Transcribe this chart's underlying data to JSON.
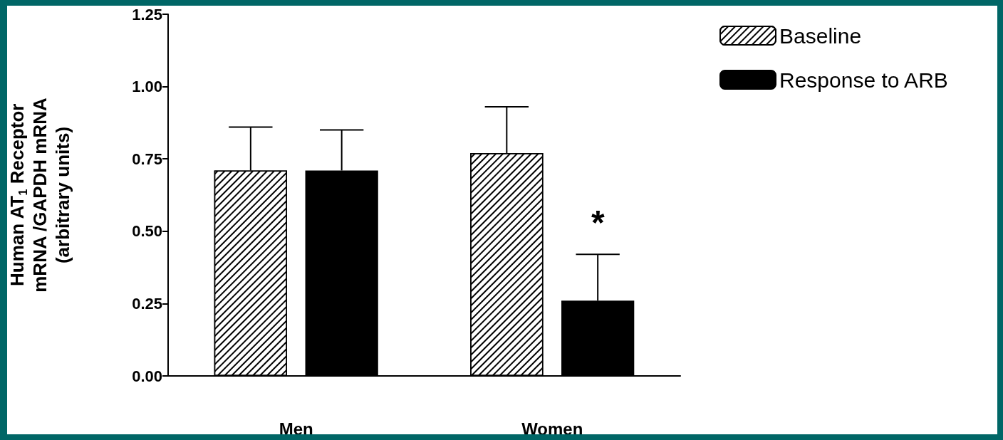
{
  "chart_data": {
    "type": "bar",
    "ylabel": "Human AT$_{1}$ Receptor\nmRNA /GAPDH mRNA\n(arbitrary units)",
    "categories": [
      "Men",
      "Women"
    ],
    "series": [
      {
        "name": "Baseline",
        "color": "#ffffff",
        "values": [
          0.71,
          0.77
        ],
        "errors": [
          [
            0.71,
            0.86
          ],
          [
            0.77,
            0.93
          ]
        ]
      },
      {
        "name": "Response to ARB",
        "color": "#000000",
        "values": [
          0.71,
          0.26
        ],
        "errors": [
          [
            0.71,
            0.85
          ],
          [
            0.26,
            0.42
          ]
        ]
      }
    ],
    "ylim": [
      0,
      1.25
    ],
    "yticks": [
      {
        "value": 0,
        "label": "0.00"
      },
      {
        "value": 0.25,
        "label": "0.25"
      },
      {
        "value": 0.5,
        "label": "0.50"
      },
      {
        "value": 0.75,
        "label": "0.75"
      },
      {
        "value": 1,
        "label": "1.00"
      },
      {
        "value": 1.25,
        "label": "1.25"
      }
    ],
    "annotations": [
      "*"
    ],
    "grid": false,
    "legend": "top right"
  }
}
